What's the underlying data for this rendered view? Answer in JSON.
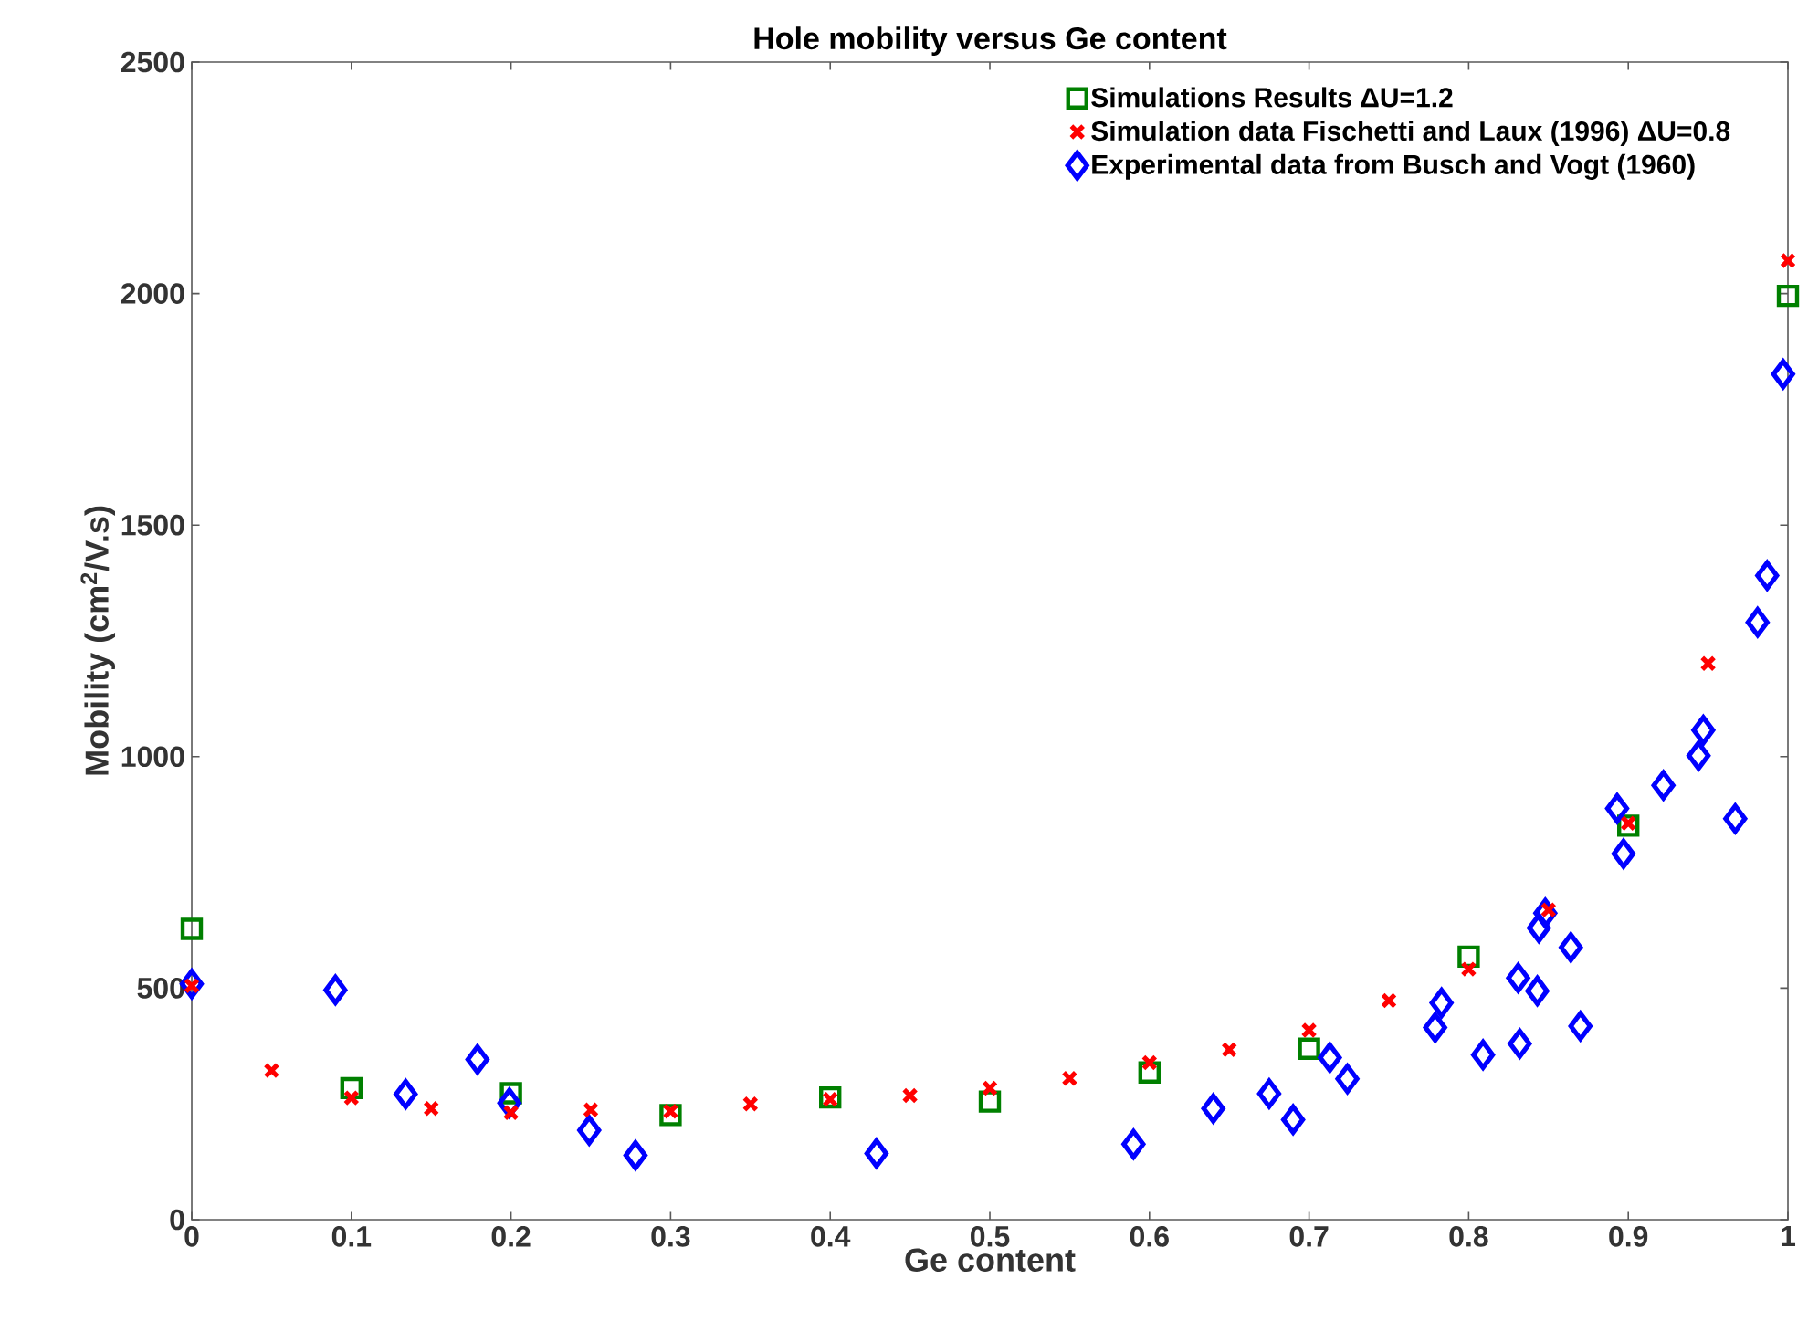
{
  "chart_data": {
    "type": "scatter",
    "title": "Hole mobility versus Ge content",
    "xlabel": "Ge content",
    "ylabel": "Mobility (cm$^{2}$/V.s)",
    "xlim": [
      0,
      1
    ],
    "ylim": [
      0,
      2500
    ],
    "xticks": [
      0,
      0.1,
      0.2,
      0.3,
      0.4,
      0.5,
      0.6,
      0.7,
      0.8,
      0.9,
      1
    ],
    "yticks": [
      0,
      500,
      1000,
      1500,
      2000,
      2500
    ],
    "legend": "top right",
    "grid": false,
    "series": [
      {
        "name": "Simulations Results ΔU=1.2",
        "color": "#008000",
        "marker": "square",
        "x": [
          0,
          0.1,
          0.2,
          0.3,
          0.4,
          0.5,
          0.6,
          0.7,
          0.8,
          0.9,
          1.0
        ],
        "values": [
          628,
          284,
          273,
          226,
          264,
          255,
          318,
          369,
          568,
          851,
          1995
        ]
      },
      {
        "name": "Simulation data Fischetti and Laux (1996) ΔU=0.8",
        "color": "#ff0000",
        "marker": "cross",
        "x": [
          0,
          0.05,
          0.1,
          0.15,
          0.2,
          0.25,
          0.3,
          0.35,
          0.4,
          0.45,
          0.5,
          0.55,
          0.6,
          0.65,
          0.7,
          0.75,
          0.8,
          0.85,
          0.9,
          0.95,
          1.0
        ],
        "values": [
          505,
          322,
          263,
          240,
          231,
          237,
          234,
          250,
          260,
          268,
          284,
          305,
          339,
          367,
          409,
          473,
          541,
          669,
          856,
          1201,
          2071
        ]
      },
      {
        "name": "Experimental data from Busch and Vogt (1960)",
        "color": "#0000ff",
        "marker": "diamond",
        "x": [
          0,
          0.09,
          0.134,
          0.179,
          0.199,
          0.249,
          0.278,
          0.429,
          0.59,
          0.64,
          0.675,
          0.69,
          0.713,
          0.724,
          0.779,
          0.783,
          0.809,
          0.831,
          0.832,
          0.843,
          0.844,
          0.848,
          0.864,
          0.87,
          0.893,
          0.897,
          0.922,
          0.944,
          0.947,
          0.967,
          0.981,
          0.987,
          0.997
        ],
        "values": [
          509,
          496,
          271,
          346,
          252,
          193,
          139,
          143,
          163,
          240,
          272,
          216,
          350,
          304,
          415,
          468,
          356,
          522,
          380,
          494,
          630,
          662,
          588,
          418,
          888,
          790,
          938,
          1002,
          1057,
          866,
          1290,
          1391,
          1826
        ]
      }
    ]
  }
}
